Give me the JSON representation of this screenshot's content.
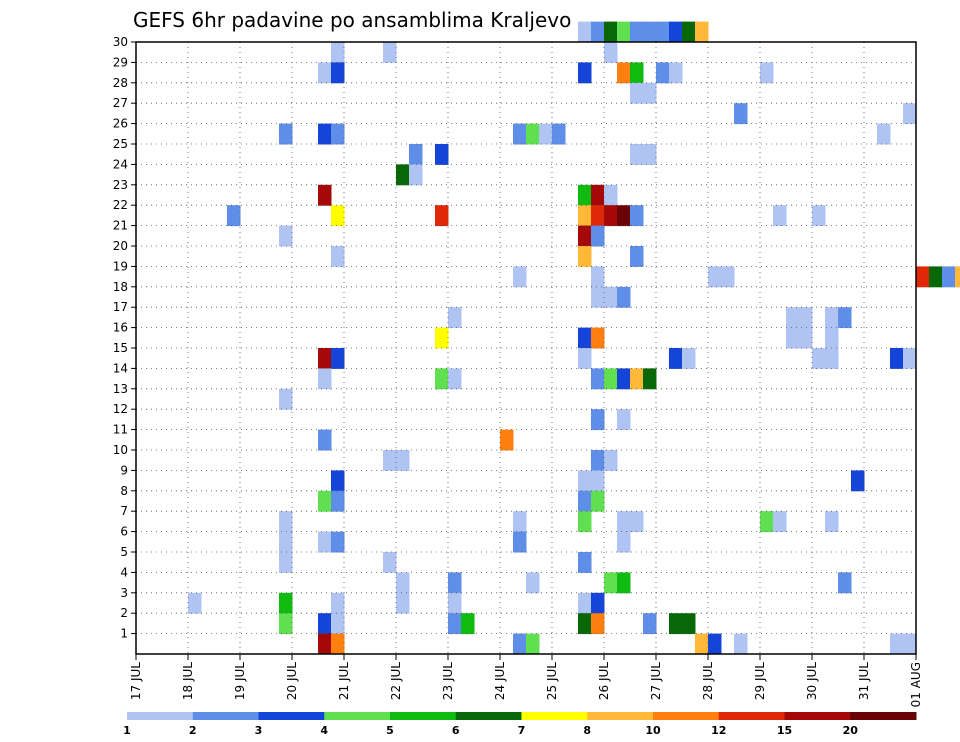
{
  "chart_data": {
    "type": "heatmap",
    "title": "GEFS 6hr padavine po ansamblima Kraljevo",
    "xlabel": "",
    "ylabel": "",
    "x_tick_labels": [
      "17 JUL",
      "18 JUL",
      "19 JUL",
      "20 JUL",
      "21 JUL",
      "22 JUL",
      "23 JUL",
      "24 JUL",
      "25 JUL",
      "26 JUL",
      "27 JUL",
      "28 JUL",
      "29 JUL",
      "30 JUL",
      "31 JUL",
      "01 AUG"
    ],
    "y_tick_labels": [
      "1",
      "2",
      "3",
      "4",
      "5",
      "6",
      "7",
      "8",
      "9",
      "10",
      "11",
      "12",
      "13",
      "14",
      "15",
      "16",
      "17",
      "18",
      "19",
      "20",
      "21",
      "22",
      "23",
      "24",
      "25",
      "26",
      "27",
      "28",
      "29",
      "30"
    ],
    "x_range_days": [
      0,
      15
    ],
    "y_range": [
      0,
      30
    ],
    "time_step_hours": 6,
    "grid": "dotted",
    "colorbar_levels": [
      "1",
      "2",
      "3",
      "4",
      "5",
      "6",
      "7",
      "8",
      "10",
      "12",
      "15",
      "20"
    ],
    "colorbar_colors": [
      "#b0c4f4",
      "#5f8ee8",
      "#1445d8",
      "#60e050",
      "#10bb10",
      "#086808",
      "#ffff00",
      "#ffb838",
      "#ff8010",
      "#e02808",
      "#a40808",
      "#6a0404"
    ],
    "cells": [
      [
        30,
        25.5,
        0
      ],
      [
        30,
        25.75,
        1
      ],
      [
        30,
        26.0,
        5
      ],
      [
        30,
        26.25,
        3
      ],
      [
        30,
        26.5,
        1
      ],
      [
        30,
        26.75,
        1
      ],
      [
        30,
        27.0,
        1
      ],
      [
        30,
        27.25,
        2
      ],
      [
        30,
        27.5,
        5
      ],
      [
        30,
        27.75,
        7
      ],
      [
        29,
        20.75,
        0
      ],
      [
        29,
        21.75,
        0
      ],
      [
        29,
        26.0,
        0
      ],
      [
        28,
        20.5,
        0
      ],
      [
        28,
        20.75,
        2
      ],
      [
        28,
        25.5,
        2
      ],
      [
        28,
        26.25,
        8
      ],
      [
        28,
        26.5,
        4
      ],
      [
        28,
        27.0,
        1
      ],
      [
        28,
        27.25,
        0
      ],
      [
        28,
        29.0,
        0
      ],
      [
        27,
        26.5,
        0
      ],
      [
        27,
        26.75,
        0
      ],
      [
        26,
        28.5,
        1
      ],
      [
        26,
        31.75,
        0
      ],
      [
        25,
        19.75,
        1
      ],
      [
        25,
        20.5,
        2
      ],
      [
        25,
        20.75,
        1
      ],
      [
        25,
        24.25,
        1
      ],
      [
        25,
        24.5,
        3
      ],
      [
        25,
        24.75,
        0
      ],
      [
        25,
        25.0,
        1
      ],
      [
        25,
        31.25,
        0
      ],
      [
        24,
        22.25,
        1
      ],
      [
        24,
        22.75,
        2
      ],
      [
        24,
        26.5,
        0
      ],
      [
        24,
        26.75,
        0
      ],
      [
        23,
        22.0,
        5
      ],
      [
        23,
        22.25,
        0
      ],
      [
        22,
        20.5,
        10
      ],
      [
        22,
        25.5,
        4
      ],
      [
        22,
        25.75,
        10
      ],
      [
        22,
        26.0,
        0
      ],
      [
        21,
        18.75,
        1
      ],
      [
        21,
        20.75,
        6
      ],
      [
        21,
        22.75,
        9
      ],
      [
        21,
        25.5,
        7
      ],
      [
        21,
        25.75,
        9
      ],
      [
        21,
        26.0,
        10
      ],
      [
        21,
        26.25,
        11
      ],
      [
        21,
        26.5,
        1
      ],
      [
        21,
        29.25,
        0
      ],
      [
        21,
        30.0,
        0
      ],
      [
        20,
        19.75,
        0
      ],
      [
        20,
        25.5,
        10
      ],
      [
        20,
        25.75,
        1
      ],
      [
        19,
        20.75,
        0
      ],
      [
        19,
        25.5,
        7
      ],
      [
        19,
        26.5,
        1
      ],
      [
        18,
        24.25,
        0
      ],
      [
        18,
        25.75,
        0
      ],
      [
        18,
        28.0,
        0
      ],
      [
        18,
        28.25,
        0
      ],
      [
        18,
        32.0,
        9
      ],
      [
        18,
        32.25,
        5
      ],
      [
        18,
        32.5,
        1
      ],
      [
        18,
        32.75,
        7
      ],
      [
        17,
        25.75,
        0
      ],
      [
        17,
        26.0,
        0
      ],
      [
        17,
        26.25,
        1
      ],
      [
        16,
        23.0,
        0
      ],
      [
        16,
        29.5,
        0
      ],
      [
        16,
        29.75,
        0
      ],
      [
        16,
        30.25,
        0
      ],
      [
        16,
        30.5,
        1
      ],
      [
        15,
        22.75,
        6
      ],
      [
        15,
        25.5,
        2
      ],
      [
        15,
        25.75,
        8
      ],
      [
        15,
        29.5,
        0
      ],
      [
        15,
        29.75,
        0
      ],
      [
        15,
        30.25,
        0
      ],
      [
        14,
        20.5,
        10
      ],
      [
        14,
        20.75,
        2
      ],
      [
        14,
        25.5,
        0
      ],
      [
        14,
        27.25,
        2
      ],
      [
        14,
        27.5,
        0
      ],
      [
        14,
        30.0,
        0
      ],
      [
        14,
        30.25,
        0
      ],
      [
        14,
        31.5,
        2
      ],
      [
        14,
        31.75,
        0
      ],
      [
        13,
        20.5,
        0
      ],
      [
        13,
        22.75,
        3
      ],
      [
        13,
        23.0,
        0
      ],
      [
        13,
        25.75,
        1
      ],
      [
        13,
        26.0,
        3
      ],
      [
        13,
        26.25,
        2
      ],
      [
        13,
        26.5,
        7
      ],
      [
        13,
        26.75,
        5
      ],
      [
        12,
        19.75,
        0
      ],
      [
        11,
        25.75,
        1
      ],
      [
        11,
        26.25,
        0
      ],
      [
        10,
        20.5,
        1
      ],
      [
        10,
        24.0,
        8
      ],
      [
        9,
        21.75,
        0
      ],
      [
        9,
        22.0,
        0
      ],
      [
        9,
        25.75,
        1
      ],
      [
        9,
        26.0,
        0
      ],
      [
        8,
        20.75,
        2
      ],
      [
        8,
        25.5,
        0
      ],
      [
        8,
        25.75,
        0
      ],
      [
        8,
        30.75,
        2
      ],
      [
        7,
        20.5,
        3
      ],
      [
        7,
        20.75,
        1
      ],
      [
        7,
        25.5,
        1
      ],
      [
        7,
        25.75,
        3
      ],
      [
        6,
        19.75,
        0
      ],
      [
        6,
        24.25,
        0
      ],
      [
        6,
        25.5,
        3
      ],
      [
        6,
        26.25,
        0
      ],
      [
        6,
        26.5,
        0
      ],
      [
        6,
        29.0,
        3
      ],
      [
        6,
        29.25,
        0
      ],
      [
        6,
        30.25,
        0
      ],
      [
        5,
        19.75,
        0
      ],
      [
        5,
        20.5,
        0
      ],
      [
        5,
        20.75,
        1
      ],
      [
        5,
        24.25,
        1
      ],
      [
        5,
        26.25,
        0
      ],
      [
        4,
        19.75,
        0
      ],
      [
        4,
        21.75,
        0
      ],
      [
        4,
        25.5,
        1
      ],
      [
        3,
        22.0,
        0
      ],
      [
        3,
        23.0,
        1
      ],
      [
        3,
        24.5,
        0
      ],
      [
        3,
        26.0,
        3
      ],
      [
        3,
        26.25,
        4
      ],
      [
        3,
        30.5,
        1
      ],
      [
        2,
        18.0,
        0
      ],
      [
        2,
        19.75,
        4
      ],
      [
        2,
        20.75,
        0
      ],
      [
        2,
        22.0,
        0
      ],
      [
        2,
        23.0,
        0
      ],
      [
        2,
        25.5,
        0
      ],
      [
        2,
        25.75,
        2
      ],
      [
        1,
        19.75,
        3
      ],
      [
        1,
        20.5,
        2
      ],
      [
        1,
        20.75,
        0
      ],
      [
        1,
        23.0,
        1
      ],
      [
        1,
        23.25,
        4
      ],
      [
        1,
        25.5,
        5
      ],
      [
        1,
        25.75,
        8
      ],
      [
        1,
        26.75,
        1
      ],
      [
        1,
        27.25,
        5
      ],
      [
        1,
        27.5,
        5
      ],
      [
        0,
        20.5,
        10
      ],
      [
        0,
        20.75,
        8
      ],
      [
        0,
        24.25,
        1
      ],
      [
        0,
        24.5,
        3
      ],
      [
        0,
        27.75,
        7
      ],
      [
        0,
        28.0,
        2
      ],
      [
        0,
        28.5,
        0
      ],
      [
        0,
        31.5,
        0
      ],
      [
        0,
        31.75,
        0
      ]
    ]
  }
}
